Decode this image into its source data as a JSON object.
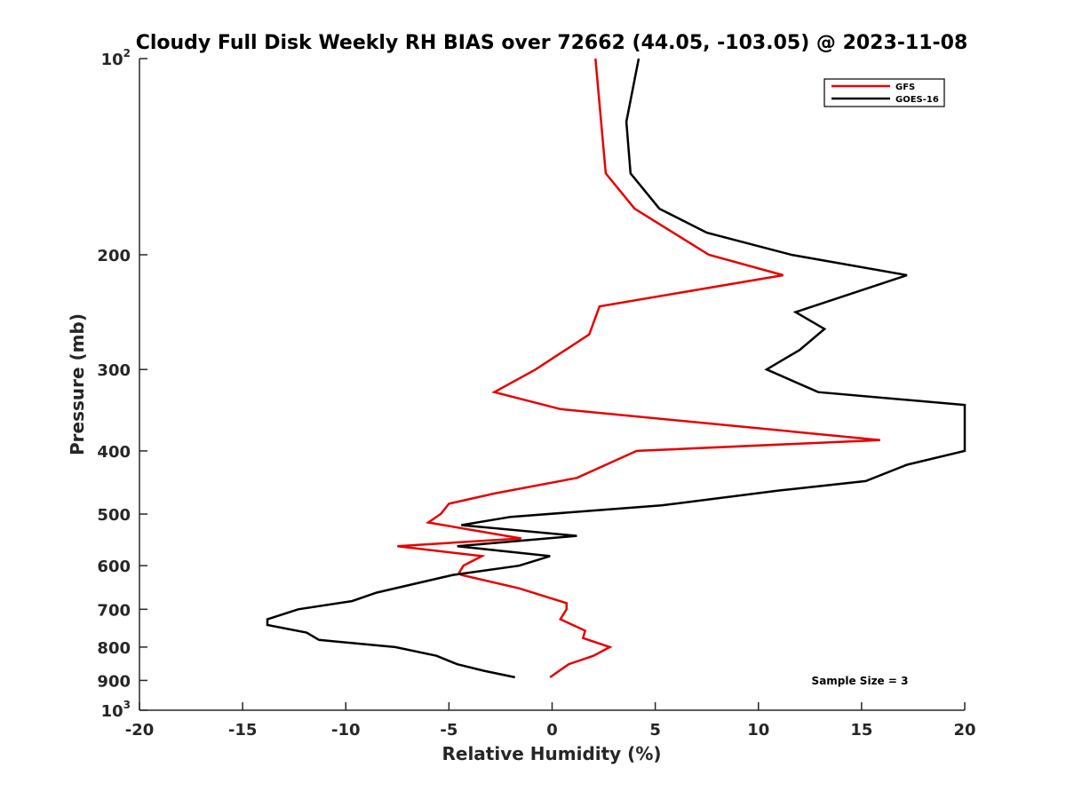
{
  "chart_data": {
    "type": "line",
    "title": "Cloudy Full Disk Weekly RH BIAS over 72662 (44.05, -103.05) @ 2023-11-08",
    "xlabel": "Relative Humidity (%)",
    "ylabel": "Pressure (mb)",
    "xlim": [
      -20,
      20
    ],
    "ylim": [
      1000,
      100
    ],
    "y_scale": "log",
    "x_ticks": [
      -20,
      -15,
      -10,
      -5,
      0,
      5,
      10,
      15,
      20
    ],
    "x_tick_labels": [
      "-20",
      "-15",
      "-10",
      "-5",
      "0",
      "5",
      "10",
      "15",
      "20"
    ],
    "y_ticks": [
      {
        "value": 100,
        "label": "10",
        "sup": "2"
      },
      {
        "value": 200,
        "label": "200",
        "sup": ""
      },
      {
        "value": 300,
        "label": "300",
        "sup": ""
      },
      {
        "value": 400,
        "label": "400",
        "sup": ""
      },
      {
        "value": 500,
        "label": "500",
        "sup": ""
      },
      {
        "value": 600,
        "label": "600",
        "sup": ""
      },
      {
        "value": 700,
        "label": "700",
        "sup": ""
      },
      {
        "value": 800,
        "label": "800",
        "sup": ""
      },
      {
        "value": 900,
        "label": "900",
        "sup": ""
      },
      {
        "value": 1000,
        "label": "10",
        "sup": "3"
      }
    ],
    "legend_position": "top-right",
    "annotation": "Sample Size = 3",
    "series": [
      {
        "name": "GFS",
        "color": "#e60000",
        "points": [
          {
            "x": 2.1,
            "p": 100
          },
          {
            "x": 2.6,
            "p": 150
          },
          {
            "x": 4.0,
            "p": 170
          },
          {
            "x": 7.6,
            "p": 200
          },
          {
            "x": 11.2,
            "p": 215
          },
          {
            "x": 2.3,
            "p": 240
          },
          {
            "x": 1.8,
            "p": 265
          },
          {
            "x": -0.8,
            "p": 300
          },
          {
            "x": -2.8,
            "p": 325
          },
          {
            "x": 0.4,
            "p": 345
          },
          {
            "x": 15.9,
            "p": 385
          },
          {
            "x": 4.1,
            "p": 400
          },
          {
            "x": 1.2,
            "p": 440
          },
          {
            "x": -2.8,
            "p": 465
          },
          {
            "x": -5.0,
            "p": 482
          },
          {
            "x": -5.4,
            "p": 500
          },
          {
            "x": -6.0,
            "p": 515
          },
          {
            "x": -1.5,
            "p": 545
          },
          {
            "x": -7.5,
            "p": 560
          },
          {
            "x": -3.4,
            "p": 580
          },
          {
            "x": -4.3,
            "p": 600
          },
          {
            "x": -4.5,
            "p": 615
          },
          {
            "x": -4.4,
            "p": 620
          },
          {
            "x": -1.6,
            "p": 650
          },
          {
            "x": 0.7,
            "p": 685
          },
          {
            "x": 0.7,
            "p": 700
          },
          {
            "x": 0.4,
            "p": 725
          },
          {
            "x": 1.6,
            "p": 755
          },
          {
            "x": 1.5,
            "p": 775
          },
          {
            "x": 2.8,
            "p": 800
          },
          {
            "x": 2.0,
            "p": 825
          },
          {
            "x": 0.8,
            "p": 850
          },
          {
            "x": -0.1,
            "p": 890
          }
        ]
      },
      {
        "name": "GOES-16",
        "color": "#000000",
        "points": [
          {
            "x": 4.2,
            "p": 100
          },
          {
            "x": 3.6,
            "p": 125
          },
          {
            "x": 3.8,
            "p": 150
          },
          {
            "x": 5.2,
            "p": 170
          },
          {
            "x": 7.5,
            "p": 185
          },
          {
            "x": 11.6,
            "p": 200
          },
          {
            "x": 17.2,
            "p": 215
          },
          {
            "x": 11.8,
            "p": 245
          },
          {
            "x": 13.2,
            "p": 260
          },
          {
            "x": 12.0,
            "p": 280
          },
          {
            "x": 10.4,
            "p": 300
          },
          {
            "x": 12.9,
            "p": 325
          },
          {
            "x": 20.0,
            "p": 340
          },
          {
            "x": 20.0,
            "p": 400
          },
          {
            "x": 17.2,
            "p": 420
          },
          {
            "x": 15.2,
            "p": 445
          },
          {
            "x": 11.0,
            "p": 460
          },
          {
            "x": 5.3,
            "p": 485
          },
          {
            "x": -2.0,
            "p": 505
          },
          {
            "x": -4.4,
            "p": 520
          },
          {
            "x": 1.2,
            "p": 540
          },
          {
            "x": -4.6,
            "p": 560
          },
          {
            "x": -0.1,
            "p": 580
          },
          {
            "x": -1.6,
            "p": 600
          },
          {
            "x": -4.8,
            "p": 620
          },
          {
            "x": -8.5,
            "p": 660
          },
          {
            "x": -9.7,
            "p": 680
          },
          {
            "x": -12.3,
            "p": 700
          },
          {
            "x": -13.8,
            "p": 725
          },
          {
            "x": -13.8,
            "p": 740
          },
          {
            "x": -11.9,
            "p": 760
          },
          {
            "x": -11.3,
            "p": 780
          },
          {
            "x": -7.6,
            "p": 800
          },
          {
            "x": -5.6,
            "p": 825
          },
          {
            "x": -4.6,
            "p": 850
          },
          {
            "x": -3.3,
            "p": 870
          },
          {
            "x": -1.8,
            "p": 890
          }
        ]
      }
    ]
  }
}
